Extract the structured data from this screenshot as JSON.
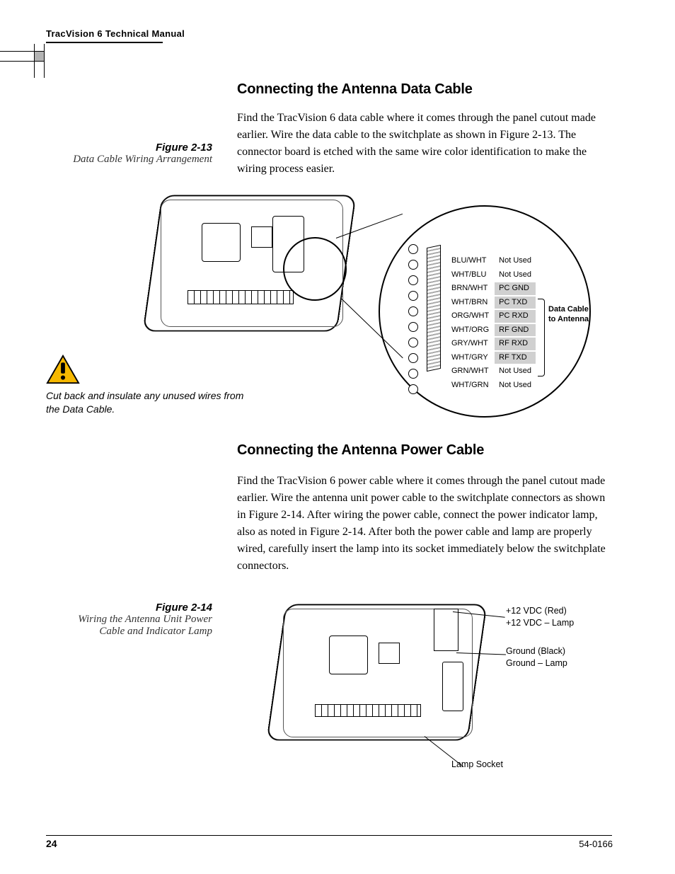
{
  "header": "TracVision 6 Technical Manual",
  "section1": {
    "title": "Connecting the Antenna Data Cable",
    "body": "Find the TracVision 6 data cable where it comes through the panel cutout made earlier. Wire the data cable to the switchplate as shown in Figure 2-13. The connector board is etched with the same wire color identification to make the wiring process easier."
  },
  "fig213": {
    "num": "Figure 2-13",
    "caption": "Data Cable Wiring Arrangement"
  },
  "wire_table": {
    "rows": [
      {
        "c": "BLU/WHT",
        "f": "Not Used",
        "shade": false
      },
      {
        "c": "WHT/BLU",
        "f": "Not Used",
        "shade": false
      },
      {
        "c": "BRN/WHT",
        "f": "PC GND",
        "shade": true
      },
      {
        "c": "WHT/BRN",
        "f": "PC TXD",
        "shade": true
      },
      {
        "c": "ORG/WHT",
        "f": "PC RXD",
        "shade": true
      },
      {
        "c": "WHT/ORG",
        "f": "RF GND",
        "shade": true
      },
      {
        "c": "GRY/WHT",
        "f": "RF RXD",
        "shade": true
      },
      {
        "c": "WHT/GRY",
        "f": "RF TXD",
        "shade": true
      },
      {
        "c": "GRN/WHT",
        "f": "Not Used",
        "shade": false
      },
      {
        "c": "WHT/GRN",
        "f": "Not Used",
        "shade": false
      }
    ],
    "callout_l1": "Data Cable",
    "callout_l2": "to Antenna"
  },
  "warning": "Cut back and insulate any unused wires from the Data Cable.",
  "section2": {
    "title": "Connecting the Antenna Power Cable",
    "body": "Find the TracVision 6 power cable where it comes through the panel cutout made earlier. Wire the antenna unit power cable to the switchplate connectors as shown in Figure 2-14. After wiring the power cable, connect the power indicator lamp, also as noted in Figure 2-14. After both the power cable and lamp are properly wired, carefully insert the lamp into its socket immediately below the switchplate connectors."
  },
  "fig214": {
    "num": "Figure 2-14",
    "caption": "Wiring the Antenna Unit Power Cable and Indicator Lamp"
  },
  "d2": {
    "l1a": "+12 VDC (Red)",
    "l1b": "+12 VDC – Lamp",
    "l2a": "Ground (Black)",
    "l2b": "Ground – Lamp",
    "l3": "Lamp Socket"
  },
  "footer": {
    "page": "24",
    "doc": "54-0166"
  }
}
